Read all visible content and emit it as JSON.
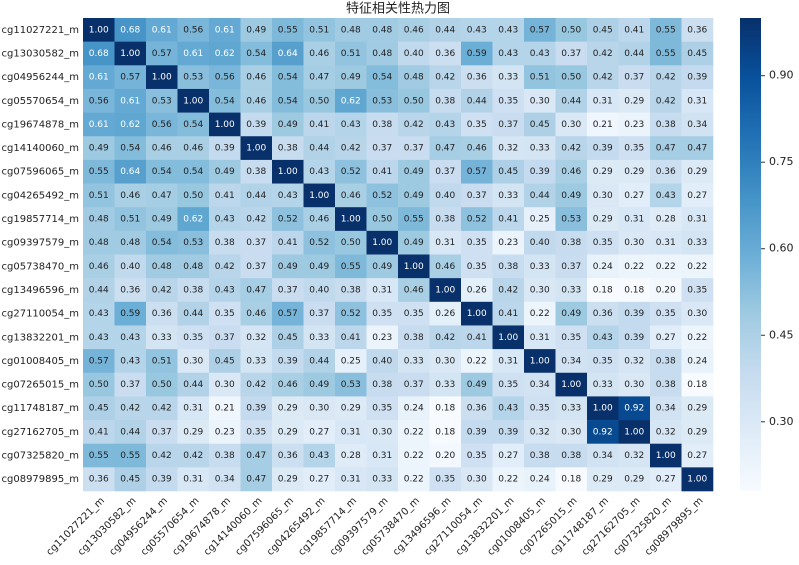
{
  "chart_data": {
    "type": "heatmap",
    "title": "特征相关性热力图",
    "categories": [
      "cg11027221_m",
      "cg13030582_m",
      "cg04956244_m",
      "cg05570654_m",
      "cg19674878_m",
      "cg14140060_m",
      "cg07596065_m",
      "cg04265492_m",
      "cg19857714_m",
      "cg09397579_m",
      "cg05738470_m",
      "cg13496596_m",
      "cg27110054_m",
      "cg13832201_m",
      "cg01008405_m",
      "cg07265015_m",
      "cg11748187_m",
      "cg27162705_m",
      "cg07325820_m",
      "cg08979895_m"
    ],
    "values": [
      [
        1,
        0.68,
        0.61,
        0.56,
        0.61,
        0.49,
        0.55,
        0.51,
        0.48,
        0.48,
        0.46,
        0.44,
        0.43,
        0.43,
        0.57,
        0.5,
        0.45,
        0.41,
        0.55,
        0.36
      ],
      [
        0.68,
        1,
        0.57,
        0.61,
        0.62,
        0.54,
        0.64,
        0.46,
        0.51,
        0.48,
        0.4,
        0.36,
        0.59,
        0.43,
        0.43,
        0.37,
        0.42,
        0.44,
        0.55,
        0.45
      ],
      [
        0.61,
        0.57,
        1,
        0.53,
        0.56,
        0.46,
        0.54,
        0.47,
        0.49,
        0.54,
        0.48,
        0.42,
        0.36,
        0.33,
        0.51,
        0.5,
        0.42,
        0.37,
        0.42,
        0.39
      ],
      [
        0.56,
        0.61,
        0.53,
        1,
        0.54,
        0.46,
        0.54,
        0.5,
        0.62,
        0.53,
        0.5,
        0.38,
        0.44,
        0.35,
        0.3,
        0.44,
        0.31,
        0.29,
        0.42,
        0.31
      ],
      [
        0.61,
        0.62,
        0.56,
        0.54,
        1,
        0.39,
        0.49,
        0.41,
        0.43,
        0.38,
        0.42,
        0.43,
        0.35,
        0.37,
        0.45,
        0.3,
        0.21,
        0.23,
        0.38,
        0.34
      ],
      [
        0.49,
        0.54,
        0.46,
        0.46,
        0.39,
        1,
        0.38,
        0.44,
        0.42,
        0.37,
        0.37,
        0.47,
        0.46,
        0.32,
        0.33,
        0.42,
        0.39,
        0.35,
        0.47,
        0.47
      ],
      [
        0.55,
        0.64,
        0.54,
        0.54,
        0.49,
        0.38,
        1,
        0.43,
        0.52,
        0.41,
        0.49,
        0.37,
        0.57,
        0.45,
        0.39,
        0.46,
        0.29,
        0.29,
        0.36,
        0.29
      ],
      [
        0.51,
        0.46,
        0.47,
        0.5,
        0.41,
        0.44,
        0.43,
        1,
        0.46,
        0.52,
        0.49,
        0.4,
        0.37,
        0.33,
        0.44,
        0.49,
        0.3,
        0.27,
        0.43,
        0.27
      ],
      [
        0.48,
        0.51,
        0.49,
        0.62,
        0.43,
        0.42,
        0.52,
        0.46,
        1,
        0.5,
        0.55,
        0.38,
        0.52,
        0.41,
        0.25,
        0.53,
        0.29,
        0.31,
        0.28,
        0.31
      ],
      [
        0.48,
        0.48,
        0.54,
        0.53,
        0.38,
        0.37,
        0.41,
        0.52,
        0.5,
        1,
        0.49,
        0.31,
        0.35,
        0.23,
        0.4,
        0.38,
        0.35,
        0.3,
        0.31,
        0.33
      ],
      [
        0.46,
        0.4,
        0.48,
        0.48,
        0.42,
        0.37,
        0.49,
        0.49,
        0.55,
        0.49,
        1,
        0.46,
        0.35,
        0.38,
        0.33,
        0.37,
        0.24,
        0.22,
        0.22,
        0.22
      ],
      [
        0.44,
        0.36,
        0.42,
        0.38,
        0.43,
        0.47,
        0.37,
        0.4,
        0.38,
        0.31,
        0.46,
        1,
        0.26,
        0.42,
        0.3,
        0.33,
        0.18,
        0.18,
        0.2,
        0.35
      ],
      [
        0.43,
        0.59,
        0.36,
        0.44,
        0.35,
        0.46,
        0.57,
        0.37,
        0.52,
        0.35,
        0.35,
        0.26,
        1,
        0.41,
        0.22,
        0.49,
        0.36,
        0.39,
        0.35,
        0.3
      ],
      [
        0.43,
        0.43,
        0.33,
        0.35,
        0.37,
        0.32,
        0.45,
        0.33,
        0.41,
        0.23,
        0.38,
        0.42,
        0.41,
        1,
        0.31,
        0.35,
        0.43,
        0.39,
        0.27,
        0.22
      ],
      [
        0.57,
        0.43,
        0.51,
        0.3,
        0.45,
        0.33,
        0.39,
        0.44,
        0.25,
        0.4,
        0.33,
        0.3,
        0.22,
        0.31,
        1,
        0.34,
        0.35,
        0.32,
        0.38,
        0.24
      ],
      [
        0.5,
        0.37,
        0.5,
        0.44,
        0.3,
        0.42,
        0.46,
        0.49,
        0.53,
        0.38,
        0.37,
        0.33,
        0.49,
        0.35,
        0.34,
        1,
        0.33,
        0.3,
        0.38,
        0.18
      ],
      [
        0.45,
        0.42,
        0.42,
        0.31,
        0.21,
        0.39,
        0.29,
        0.3,
        0.29,
        0.35,
        0.24,
        0.18,
        0.36,
        0.43,
        0.35,
        0.33,
        1,
        0.92,
        0.34,
        0.29
      ],
      [
        0.41,
        0.44,
        0.37,
        0.29,
        0.23,
        0.35,
        0.29,
        0.27,
        0.31,
        0.3,
        0.22,
        0.18,
        0.39,
        0.39,
        0.32,
        0.3,
        0.92,
        1,
        0.32,
        0.29
      ],
      [
        0.55,
        0.55,
        0.42,
        0.42,
        0.38,
        0.47,
        0.36,
        0.43,
        0.28,
        0.31,
        0.22,
        0.2,
        0.35,
        0.27,
        0.38,
        0.38,
        0.34,
        0.32,
        1,
        0.27
      ],
      [
        0.36,
        0.45,
        0.39,
        0.31,
        0.34,
        0.47,
        0.29,
        0.27,
        0.31,
        0.33,
        0.22,
        0.35,
        0.3,
        0.22,
        0.24,
        0.18,
        0.29,
        0.29,
        0.27,
        1
      ]
    ],
    "value_labels": [
      [
        "1.00",
        "0.68",
        "0.61",
        "0.56",
        "0.61",
        "0.49",
        "0.55",
        "0.51",
        "0.48",
        "0.48",
        "0.46",
        "0.44",
        "0.43",
        "0.43",
        "0.57",
        "0.50",
        "0.45",
        "0.41",
        "0.55",
        "0.36"
      ],
      [
        "0.68",
        "1.00",
        "0.57",
        "0.61",
        "0.62",
        "0.54",
        "0.64",
        "0.46",
        "0.51",
        "0.48",
        "0.40",
        "0.36",
        "0.59",
        "0.43",
        "0.43",
        "0.37",
        "0.42",
        "0.44",
        "0.55",
        "0.45"
      ],
      [
        "0.61",
        "0.57",
        "1.00",
        "0.53",
        "0.56",
        "0.46",
        "0.54",
        "0.47",
        "0.49",
        "0.54",
        "0.48",
        "0.42",
        "0.36",
        "0.33",
        "0.51",
        "0.50",
        "0.42",
        "0.37",
        "0.42",
        "0.39"
      ],
      [
        "0.56",
        "0.61",
        "0.53",
        "1.00",
        "0.54",
        "0.46",
        "0.54",
        "0.50",
        "0.62",
        "0.53",
        "0.50",
        "0.38",
        "0.44",
        "0.35",
        "0.30",
        "0.44",
        "0.31",
        "0.29",
        "0.42",
        "0.31"
      ],
      [
        "0.61",
        "0.62",
        "0.56",
        "0.54",
        "1.00",
        "0.39",
        "0.49",
        "0.41",
        "0.43",
        "0.38",
        "0.42",
        "0.43",
        "0.35",
        "0.37",
        "0.45",
        "0.30",
        "0.21",
        "0.23",
        "0.38",
        "0.34"
      ],
      [
        "0.49",
        "0.54",
        "0.46",
        "0.46",
        "0.39",
        "1.00",
        "0.38",
        "0.44",
        "0.42",
        "0.37",
        "0.37",
        "0.47",
        "0.46",
        "0.32",
        "0.33",
        "0.42",
        "0.39",
        "0.35",
        "0.47",
        "0.47"
      ],
      [
        "0.55",
        "0.64",
        "0.54",
        "0.54",
        "0.49",
        "0.38",
        "1.00",
        "0.43",
        "0.52",
        "0.41",
        "0.49",
        "0.37",
        "0.57",
        "0.45",
        "0.39",
        "0.46",
        "0.29",
        "0.29",
        "0.36",
        "0.29"
      ],
      [
        "0.51",
        "0.46",
        "0.47",
        "0.50",
        "0.41",
        "0.44",
        "0.43",
        "1.00",
        "0.46",
        "0.52",
        "0.49",
        "0.40",
        "0.37",
        "0.33",
        "0.44",
        "0.49",
        "0.30",
        "0.27",
        "0.43",
        "0.27"
      ],
      [
        "0.48",
        "0.51",
        "0.49",
        "0.62",
        "0.43",
        "0.42",
        "0.52",
        "0.46",
        "1.00",
        "0.50",
        "0.55",
        "0.38",
        "0.52",
        "0.41",
        "0.25",
        "0.53",
        "0.29",
        "0.31",
        "0.28",
        "0.31"
      ],
      [
        "0.48",
        "0.48",
        "0.54",
        "0.53",
        "0.38",
        "0.37",
        "0.41",
        "0.52",
        "0.50",
        "1.00",
        "0.49",
        "0.31",
        "0.35",
        "0.23",
        "0.40",
        "0.38",
        "0.35",
        "0.30",
        "0.31",
        "0.33"
      ],
      [
        "0.46",
        "0.40",
        "0.48",
        "0.48",
        "0.42",
        "0.37",
        "0.49",
        "0.49",
        "0.55",
        "0.49",
        "1.00",
        "0.46",
        "0.35",
        "0.38",
        "0.33",
        "0.37",
        "0.24",
        "0.22",
        "0.22",
        "0.22"
      ],
      [
        "0.44",
        "0.36",
        "0.42",
        "0.38",
        "0.43",
        "0.47",
        "0.37",
        "0.40",
        "0.38",
        "0.31",
        "0.46",
        "1.00",
        "0.26",
        "0.42",
        "0.30",
        "0.33",
        "0.18",
        "0.18",
        "0.20",
        "0.35"
      ],
      [
        "0.43",
        "0.59",
        "0.36",
        "0.44",
        "0.35",
        "0.46",
        "0.57",
        "0.37",
        "0.52",
        "0.35",
        "0.35",
        "0.26",
        "1.00",
        "0.41",
        "0.22",
        "0.49",
        "0.36",
        "0.39",
        "0.35",
        "0.30"
      ],
      [
        "0.43",
        "0.43",
        "0.33",
        "0.35",
        "0.37",
        "0.32",
        "0.45",
        "0.33",
        "0.41",
        "0.23",
        "0.38",
        "0.42",
        "0.41",
        "1.00",
        "0.31",
        "0.35",
        "0.43",
        "0.39",
        "0.27",
        "0.22"
      ],
      [
        "0.57",
        "0.43",
        "0.51",
        "0.30",
        "0.45",
        "0.33",
        "0.39",
        "0.44",
        "0.25",
        "0.40",
        "0.33",
        "0.30",
        "0.22",
        "0.31",
        "1.00",
        "0.34",
        "0.35",
        "0.32",
        "0.38",
        "0.24"
      ],
      [
        "0.50",
        "0.37",
        "0.50",
        "0.44",
        "0.30",
        "0.42",
        "0.46",
        "0.49",
        "0.53",
        "0.38",
        "0.37",
        "0.33",
        "0.49",
        "0.35",
        "0.34",
        "1.00",
        "0.33",
        "0.30",
        "0.38",
        "0.18"
      ],
      [
        "0.45",
        "0.42",
        "0.42",
        "0.31",
        "0.21",
        "0.39",
        "0.29",
        "0.30",
        "0.29",
        "0.35",
        "0.24",
        "0.18",
        "0.36",
        "0.43",
        "0.35",
        "0.33",
        "1.00",
        "0.92",
        "0.34",
        "0.29"
      ],
      [
        "0.41",
        "0.44",
        "0.37",
        "0.29",
        "0.23",
        "0.35",
        "0.29",
        "0.27",
        "0.31",
        "0.30",
        "0.22",
        "0.18",
        "0.39",
        "0.39",
        "0.32",
        "0.30",
        "0.92",
        "1.00",
        "0.32",
        "0.29"
      ],
      [
        "0.55",
        "0.55",
        "0.42",
        "0.42",
        "0.38",
        "0.47",
        "0.36",
        "0.43",
        "0.28",
        "0.31",
        "0.22",
        "0.20",
        "0.35",
        "0.27",
        "0.38",
        "0.38",
        "0.34",
        "0.32",
        "1.00",
        "0.27"
      ],
      [
        "0.36",
        "0.45",
        "0.39",
        "0.31",
        "0.34",
        "0.47",
        "0.29",
        "0.27",
        "0.31",
        "0.33",
        "0.22",
        "0.35",
        "0.30",
        "0.22",
        "0.24",
        "0.18",
        "0.29",
        "0.29",
        "0.27",
        "1.00"
      ]
    ],
    "clim": [
      0.18,
      1.0
    ],
    "cticks": [
      {
        "value": 0.3,
        "label": "0.30"
      },
      {
        "value": 0.45,
        "label": "0.45"
      },
      {
        "value": 0.6,
        "label": "0.60"
      },
      {
        "value": 0.75,
        "label": "0.75"
      },
      {
        "value": 0.9,
        "label": "0.90"
      }
    ],
    "colormap": [
      "#f7fbff",
      "#deebf7",
      "#c6dbef",
      "#9ecae1",
      "#6baed6",
      "#4292c6",
      "#2171b5",
      "#08519c",
      "#08306b"
    ]
  }
}
